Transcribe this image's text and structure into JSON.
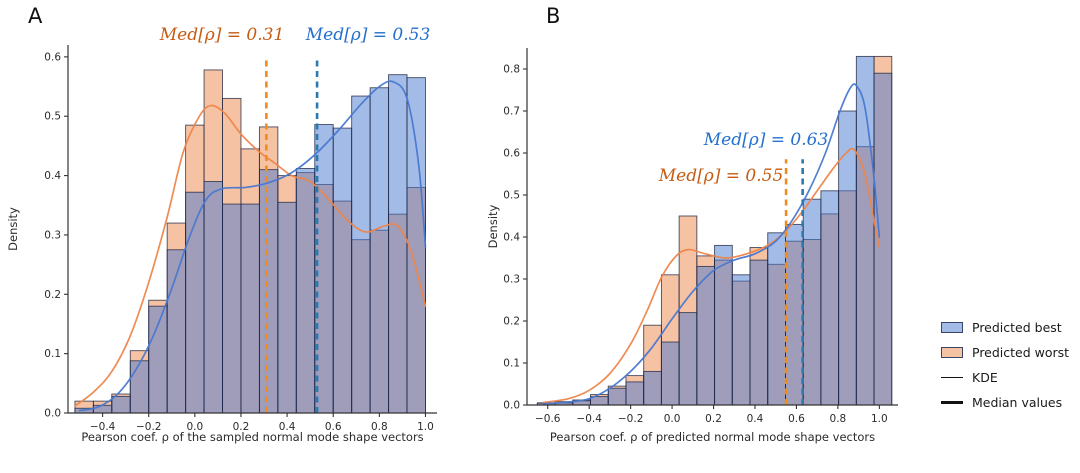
{
  "figure": {
    "background": "#ffffff",
    "panel_labels": [
      "A",
      "B"
    ]
  },
  "colors": {
    "best_fill": "#4878d0",
    "worst_fill": "#ee854a",
    "best_kde": "#4878d0",
    "worst_kde": "#ee854a",
    "best_median_line": "#2a7ab0",
    "worst_median_line": "#f08c1e",
    "best_annotation": "#2470cd",
    "worst_annotation": "#c65c14",
    "bar_edge": "#1d2642",
    "axis": "#333333",
    "tick_text": "#2b2b2b"
  },
  "legend": {
    "items": [
      {
        "label": "Predicted best",
        "swatch": "patch-blue"
      },
      {
        "label": "Predicted worst",
        "swatch": "patch-orange"
      },
      {
        "label": "KDE",
        "swatch": "thin-line"
      },
      {
        "label": "Median values",
        "swatch": "thick-line"
      }
    ]
  },
  "chart_data": [
    {
      "panel_label": "A",
      "type": "histogram+kde",
      "title": "",
      "xlabel": "Pearson coef. ρ of the sampled normal mode shape vectors",
      "ylabel": "Density",
      "xlim": [
        -0.55,
        1.05
      ],
      "ylim": [
        0,
        0.62
      ],
      "x_ticks": [
        -0.4,
        -0.2,
        0.0,
        0.2,
        0.4,
        0.6,
        0.8,
        1.0
      ],
      "y_ticks": [
        0.0,
        0.1,
        0.2,
        0.3,
        0.4,
        0.5,
        0.6
      ],
      "grid": false,
      "bins": {
        "start": -0.52,
        "width": 0.08,
        "count": 19
      },
      "series": [
        {
          "name": "Predicted best",
          "median": 0.53,
          "annotation": "Med[ρ] = 0.53",
          "values": [
            0.008,
            0.013,
            0.028,
            0.088,
            0.18,
            0.275,
            0.372,
            0.39,
            0.352,
            0.352,
            0.41,
            0.355,
            0.412,
            0.486,
            0.48,
            0.534,
            0.548,
            0.57,
            0.565
          ],
          "kde": [
            [
              -0.5,
              0.004
            ],
            [
              -0.42,
              0.01
            ],
            [
              -0.34,
              0.03
            ],
            [
              -0.26,
              0.07
            ],
            [
              -0.18,
              0.13
            ],
            [
              -0.1,
              0.21
            ],
            [
              -0.02,
              0.3
            ],
            [
              0.05,
              0.36
            ],
            [
              0.12,
              0.378
            ],
            [
              0.22,
              0.38
            ],
            [
              0.32,
              0.388
            ],
            [
              0.42,
              0.405
            ],
            [
              0.52,
              0.435
            ],
            [
              0.62,
              0.475
            ],
            [
              0.72,
              0.52
            ],
            [
              0.8,
              0.55
            ],
            [
              0.86,
              0.558
            ],
            [
              0.92,
              0.53
            ],
            [
              0.97,
              0.42
            ],
            [
              1.0,
              0.28
            ]
          ]
        },
        {
          "name": "Predicted worst",
          "median": 0.31,
          "annotation": "Med[ρ] = 0.31",
          "values": [
            0.02,
            0.02,
            0.032,
            0.105,
            0.19,
            0.32,
            0.485,
            0.578,
            0.53,
            0.445,
            0.482,
            0.4,
            0.405,
            0.385,
            0.357,
            0.292,
            0.308,
            0.335,
            0.38
          ],
          "kde": [
            [
              -0.52,
              0.012
            ],
            [
              -0.44,
              0.035
            ],
            [
              -0.36,
              0.07
            ],
            [
              -0.28,
              0.13
            ],
            [
              -0.2,
              0.22
            ],
            [
              -0.12,
              0.33
            ],
            [
              -0.05,
              0.44
            ],
            [
              0.02,
              0.5
            ],
            [
              0.07,
              0.518
            ],
            [
              0.13,
              0.505
            ],
            [
              0.2,
              0.47
            ],
            [
              0.28,
              0.44
            ],
            [
              0.35,
              0.42
            ],
            [
              0.42,
              0.4
            ],
            [
              0.5,
              0.39
            ],
            [
              0.58,
              0.36
            ],
            [
              0.66,
              0.325
            ],
            [
              0.74,
              0.305
            ],
            [
              0.82,
              0.315
            ],
            [
              0.88,
              0.315
            ],
            [
              0.94,
              0.27
            ],
            [
              1.0,
              0.18
            ]
          ]
        }
      ]
    },
    {
      "panel_label": "B",
      "type": "histogram+kde",
      "title": "",
      "xlabel": "Pearson coef. ρ of predicted normal mode shape vectors",
      "ylabel": "Density",
      "xlim": [
        -0.7,
        1.09
      ],
      "ylim": [
        0,
        0.85
      ],
      "x_ticks": [
        -0.6,
        -0.4,
        -0.2,
        0.0,
        0.2,
        0.4,
        0.6,
        0.8,
        1.0
      ],
      "y_ticks": [
        0.0,
        0.1,
        0.2,
        0.3,
        0.4,
        0.5,
        0.6,
        0.7,
        0.8
      ],
      "grid": false,
      "bins": {
        "start": -0.65,
        "width": 0.0855,
        "count": 20
      },
      "series": [
        {
          "name": "Predicted best",
          "median": 0.63,
          "annotation": "Med[ρ] = 0.63",
          "values": [
            0.005,
            0.005,
            0.01,
            0.02,
            0.04,
            0.055,
            0.08,
            0.15,
            0.22,
            0.33,
            0.38,
            0.31,
            0.345,
            0.41,
            0.43,
            0.49,
            0.51,
            0.7,
            0.83,
            0.79
          ],
          "kde": [
            [
              -0.62,
              0.003
            ],
            [
              -0.5,
              0.007
            ],
            [
              -0.4,
              0.015
            ],
            [
              -0.3,
              0.04
            ],
            [
              -0.2,
              0.08
            ],
            [
              -0.1,
              0.135
            ],
            [
              0.0,
              0.205
            ],
            [
              0.1,
              0.27
            ],
            [
              0.2,
              0.32
            ],
            [
              0.3,
              0.345
            ],
            [
              0.4,
              0.36
            ],
            [
              0.5,
              0.39
            ],
            [
              0.58,
              0.44
            ],
            [
              0.66,
              0.51
            ],
            [
              0.74,
              0.6
            ],
            [
              0.81,
              0.7
            ],
            [
              0.86,
              0.755
            ],
            [
              0.89,
              0.76
            ],
            [
              0.93,
              0.71
            ],
            [
              0.97,
              0.56
            ],
            [
              1.0,
              0.4
            ]
          ]
        },
        {
          "name": "Predicted worst",
          "median": 0.55,
          "annotation": "Med[ρ] = 0.55",
          "values": [
            0.005,
            0.008,
            0.012,
            0.025,
            0.045,
            0.07,
            0.19,
            0.31,
            0.45,
            0.355,
            0.345,
            0.295,
            0.375,
            0.335,
            0.39,
            0.394,
            0.455,
            0.51,
            0.615,
            0.83
          ],
          "kde": [
            [
              -0.62,
              0.006
            ],
            [
              -0.5,
              0.015
            ],
            [
              -0.4,
              0.035
            ],
            [
              -0.3,
              0.075
            ],
            [
              -0.2,
              0.145
            ],
            [
              -0.12,
              0.225
            ],
            [
              -0.05,
              0.305
            ],
            [
              0.02,
              0.355
            ],
            [
              0.08,
              0.37
            ],
            [
              0.16,
              0.36
            ],
            [
              0.26,
              0.35
            ],
            [
              0.36,
              0.36
            ],
            [
              0.46,
              0.38
            ],
            [
              0.54,
              0.41
            ],
            [
              0.62,
              0.455
            ],
            [
              0.7,
              0.51
            ],
            [
              0.78,
              0.565
            ],
            [
              0.84,
              0.6
            ],
            [
              0.88,
              0.607
            ],
            [
              0.93,
              0.55
            ],
            [
              0.97,
              0.45
            ],
            [
              1.0,
              0.375
            ]
          ]
        }
      ]
    }
  ]
}
